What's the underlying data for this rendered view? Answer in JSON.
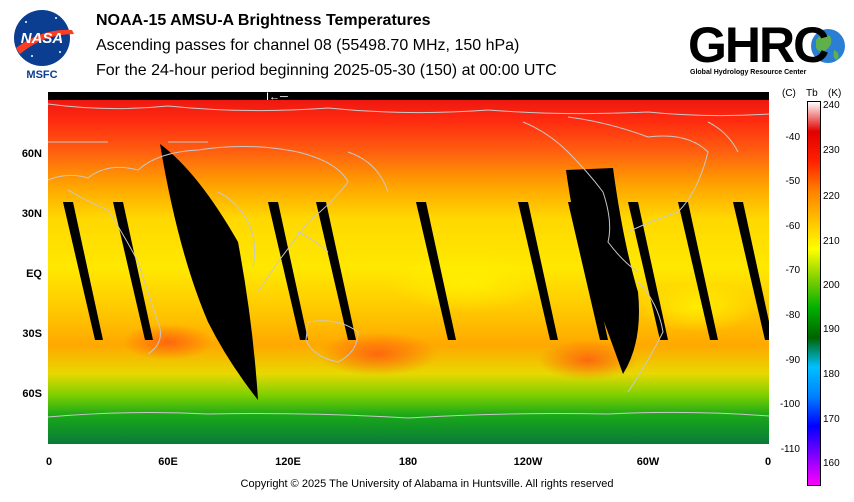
{
  "header": {
    "title": "NOAA-15 AMSU-A Brightness Temperatures",
    "subtitle": "Ascending passes for channel 08 (55498.70 MHz, 150 hPa)",
    "period": "For the 24-hour period beginning 2025-05-30 (150) at 00:00 UTC"
  },
  "logos": {
    "nasa_text": "NASA",
    "msfc_text": "MSFC",
    "ghrc_text": "GHRC",
    "ghrc_full": "Global Hydrology Resource Center"
  },
  "map": {
    "lat_labels": [
      "60N",
      "30N",
      "EQ",
      "30S",
      "60S"
    ],
    "lon_labels": [
      "0",
      "60E",
      "120E",
      "180",
      "120W",
      "60W",
      "0"
    ],
    "data_gap_color": "#000000",
    "swath_count": 14
  },
  "colorbar": {
    "header_c": "(C)",
    "header_tb": "Tb",
    "header_k": "(K)",
    "kelvin_ticks": [
      "240",
      "230",
      "220",
      "210",
      "200",
      "190",
      "180",
      "170",
      "160"
    ],
    "celsius_ticks": [
      "-40",
      "-50",
      "-60",
      "-70",
      "-80",
      "-90",
      "-100",
      "-110"
    ],
    "range_k": [
      155,
      240
    ],
    "colors": [
      "#ff00ff",
      "#8000ff",
      "#0000ff",
      "#0080ff",
      "#00c0ff",
      "#006400",
      "#00b000",
      "#80d000",
      "#ffff00",
      "#ffc000",
      "#ff8000",
      "#ff2000",
      "#e00000",
      "#ffffff"
    ]
  },
  "footer": {
    "copyright": "Copyright © 2025 The University of Alabama in Huntsville.  All rights reserved"
  }
}
